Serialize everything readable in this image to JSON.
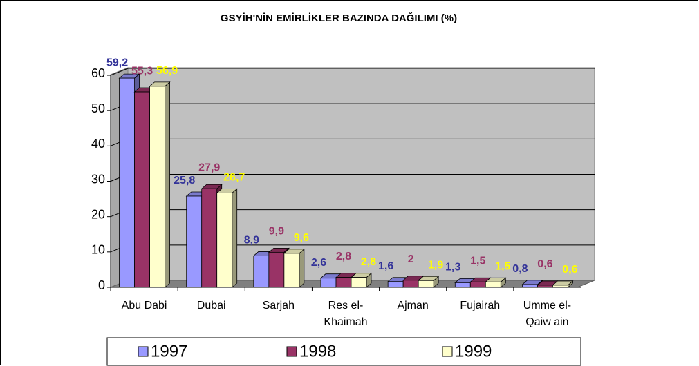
{
  "chart_data": {
    "type": "bar3d",
    "title": "GSYİH'NİN EMİRLİKLER BAZINDA DAĞILIMI (%)",
    "categories": [
      "Abu Dabi",
      "Dubai",
      "Sarjah",
      "Res el-Khaimah",
      "Ajman",
      "Fujairah",
      "Umme el-Qaiw ain"
    ],
    "series": [
      {
        "name": "1997",
        "color": "#9999ff",
        "label_color": "#333399",
        "values": [
          59.2,
          25.8,
          8.9,
          2.6,
          1.6,
          1.3,
          0.8
        ],
        "value_labels": [
          "59,2",
          "25,8",
          "8,9",
          "2,6",
          "1,6",
          "1,3",
          "0,8"
        ]
      },
      {
        "name": "1998",
        "color": "#993366",
        "label_color": "#993366",
        "values": [
          55.3,
          27.9,
          9.9,
          2.8,
          2,
          1.5,
          0.6
        ],
        "value_labels": [
          "55,3",
          "27,9",
          "9,9",
          "2,8",
          "2",
          "1,5",
          "0,6"
        ]
      },
      {
        "name": "1999",
        "color": "#ffffcc",
        "label_color": "#ffff00",
        "values": [
          56.9,
          26.7,
          9.6,
          2.8,
          1.9,
          1.5,
          0.6
        ],
        "value_labels": [
          "56,9",
          "26,7",
          "9,6",
          "2,8",
          "1,9",
          "1,5",
          "0,6"
        ]
      }
    ],
    "ylim": [
      0,
      60
    ],
    "yticks": [
      0,
      10,
      20,
      30,
      40,
      50,
      60
    ],
    "grid": true
  }
}
